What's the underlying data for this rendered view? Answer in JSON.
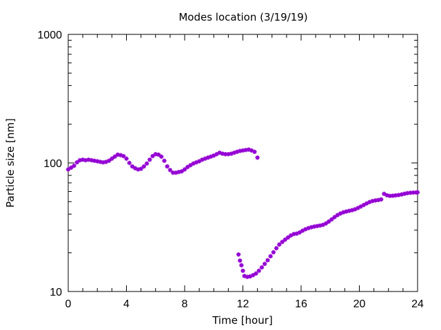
{
  "chart_data": {
    "type": "scatter",
    "title": "Modes location (3/19/19)",
    "xlabel": "Time [hour]",
    "ylabel": "Particle size [nm]",
    "xlim": [
      0,
      24
    ],
    "ylim": [
      10,
      1000
    ],
    "yscale": "log",
    "grid": false,
    "legend": "none",
    "x_ticks": [
      0,
      4,
      8,
      12,
      16,
      20,
      24
    ],
    "x_tick_labels": [
      "0",
      "4",
      "8",
      "12",
      "16",
      "20",
      "24"
    ],
    "y_ticks": [
      10,
      100,
      1000
    ],
    "y_tick_labels": [
      "10",
      "100",
      "1000"
    ],
    "marker_color": "#9400d3",
    "marker": "asterisk",
    "series": [
      {
        "points": [
          [
            0,
            89
          ],
          [
            0.2,
            92
          ],
          [
            0.4,
            95
          ],
          [
            0.6,
            101
          ],
          [
            0.8,
            105
          ],
          [
            1.0,
            106
          ],
          [
            1.2,
            105
          ],
          [
            1.4,
            106
          ],
          [
            1.6,
            105
          ],
          [
            1.8,
            104
          ],
          [
            2.0,
            103
          ],
          [
            2.2,
            102
          ],
          [
            2.4,
            101
          ],
          [
            2.6,
            102
          ],
          [
            2.8,
            104
          ],
          [
            3.0,
            108
          ],
          [
            3.2,
            112
          ],
          [
            3.4,
            116
          ],
          [
            3.6,
            115
          ],
          [
            3.8,
            113
          ],
          [
            4.0,
            108
          ],
          [
            4.2,
            100
          ],
          [
            4.4,
            94
          ],
          [
            4.6,
            91
          ],
          [
            4.8,
            89
          ],
          [
            5.0,
            90
          ],
          [
            5.2,
            94
          ],
          [
            5.4,
            99
          ],
          [
            5.6,
            106
          ],
          [
            5.8,
            113
          ],
          [
            6.0,
            117
          ],
          [
            6.2,
            116
          ],
          [
            6.4,
            112
          ],
          [
            6.6,
            104
          ],
          [
            6.8,
            94
          ],
          [
            7.0,
            88
          ],
          [
            7.2,
            84
          ],
          [
            7.4,
            84
          ],
          [
            7.6,
            85
          ],
          [
            7.8,
            86
          ],
          [
            8.0,
            89
          ],
          [
            8.2,
            93
          ],
          [
            8.4,
            96
          ],
          [
            8.6,
            99
          ],
          [
            8.8,
            101
          ],
          [
            9.0,
            103
          ],
          [
            9.2,
            106
          ],
          [
            9.4,
            108
          ],
          [
            9.6,
            110
          ],
          [
            9.8,
            112
          ],
          [
            10.0,
            114
          ],
          [
            10.2,
            117
          ],
          [
            10.4,
            120
          ],
          [
            10.6,
            118
          ],
          [
            10.8,
            117
          ],
          [
            11.0,
            117
          ],
          [
            11.2,
            118
          ],
          [
            11.4,
            120
          ],
          [
            11.6,
            122
          ],
          [
            11.8,
            124
          ],
          [
            12.0,
            125
          ],
          [
            12.2,
            126
          ],
          [
            12.4,
            127
          ],
          [
            12.6,
            125
          ],
          [
            12.8,
            122
          ],
          [
            13.0,
            110
          ]
        ]
      },
      {
        "points": [
          [
            11.7,
            19.4
          ],
          [
            11.8,
            17.4
          ],
          [
            11.9,
            16.0
          ],
          [
            12.0,
            14.5
          ],
          [
            12.1,
            13.2
          ],
          [
            12.3,
            13.0
          ],
          [
            12.5,
            13.1
          ],
          [
            12.7,
            13.4
          ],
          [
            12.9,
            13.8
          ],
          [
            13.1,
            14.5
          ],
          [
            13.3,
            15.4
          ],
          [
            13.5,
            16.4
          ],
          [
            13.7,
            17.5
          ],
          [
            13.9,
            18.8
          ],
          [
            14.1,
            20.2
          ],
          [
            14.3,
            21.7
          ],
          [
            14.5,
            23.2
          ],
          [
            14.7,
            24.3
          ],
          [
            14.9,
            25.3
          ],
          [
            15.1,
            26.3
          ],
          [
            15.3,
            27.3
          ],
          [
            15.5,
            28.0
          ],
          [
            15.7,
            28.2
          ],
          [
            15.9,
            28.8
          ],
          [
            16.1,
            29.7
          ],
          [
            16.3,
            30.5
          ],
          [
            16.5,
            31.1
          ],
          [
            16.7,
            31.6
          ],
          [
            16.9,
            32.0
          ],
          [
            17.1,
            32.3
          ],
          [
            17.3,
            32.6
          ],
          [
            17.5,
            33.0
          ],
          [
            17.7,
            33.8
          ],
          [
            17.9,
            35.0
          ],
          [
            18.1,
            36.4
          ],
          [
            18.3,
            37.9
          ],
          [
            18.5,
            39.3
          ],
          [
            18.7,
            40.4
          ],
          [
            18.9,
            41.3
          ],
          [
            19.1,
            41.9
          ],
          [
            19.3,
            42.4
          ],
          [
            19.5,
            42.9
          ],
          [
            19.7,
            43.6
          ],
          [
            19.9,
            44.6
          ],
          [
            20.1,
            45.8
          ],
          [
            20.3,
            47.1
          ],
          [
            20.5,
            48.4
          ],
          [
            20.7,
            49.6
          ],
          [
            20.9,
            50.5
          ],
          [
            21.1,
            51.1
          ],
          [
            21.3,
            51.5
          ],
          [
            21.5,
            52.0
          ],
          [
            21.7,
            57.5
          ],
          [
            21.9,
            56.0
          ],
          [
            22.1,
            55.4
          ],
          [
            22.3,
            55.6
          ],
          [
            22.5,
            55.9
          ],
          [
            22.7,
            56.3
          ],
          [
            22.9,
            56.9
          ],
          [
            23.1,
            57.6
          ],
          [
            23.3,
            58.2
          ],
          [
            23.5,
            58.6
          ],
          [
            23.7,
            58.8
          ],
          [
            23.9,
            58.9
          ],
          [
            24.0,
            59.0
          ]
        ]
      }
    ]
  }
}
